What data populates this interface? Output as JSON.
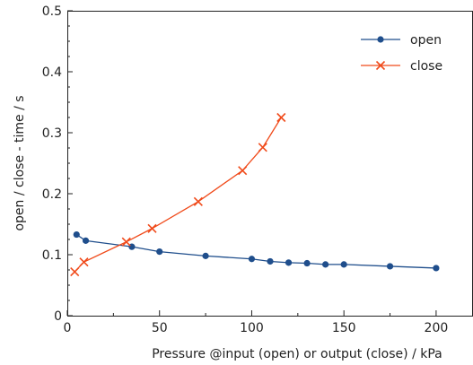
{
  "chart_data": {
    "type": "line",
    "xlabel": "Pressure @input (open) or output (close) / kPa",
    "ylabel": "open / close - time / s",
    "xlim": [
      0,
      220
    ],
    "ylim": [
      0,
      0.5
    ],
    "x_ticks": [
      0,
      50,
      100,
      150,
      200
    ],
    "x_tick_labels": [
      "0",
      "50",
      "100",
      "150",
      "200"
    ],
    "y_ticks": [
      0,
      0.1,
      0.2,
      0.3,
      0.4,
      0.5
    ],
    "y_tick_labels": [
      "0",
      "0.1",
      "0.2",
      "0.3",
      "0.4",
      "0.5"
    ],
    "grid": false,
    "legend_position": "top-right",
    "series": [
      {
        "name": "open",
        "color": "#1f4e8c",
        "marker": "circle",
        "x": [
          5,
          10,
          35,
          50,
          75,
          100,
          110,
          120,
          130,
          140,
          150,
          175,
          200
        ],
        "y": [
          0.133,
          0.123,
          0.113,
          0.105,
          0.098,
          0.093,
          0.089,
          0.087,
          0.086,
          0.084,
          0.084,
          0.081,
          0.078
        ]
      },
      {
        "name": "close",
        "color": "#f04a1a",
        "marker": "x",
        "x": [
          4,
          9,
          32,
          46,
          71,
          95,
          106,
          116
        ],
        "y": [
          0.072,
          0.088,
          0.121,
          0.143,
          0.187,
          0.238,
          0.276,
          0.325
        ]
      }
    ]
  }
}
